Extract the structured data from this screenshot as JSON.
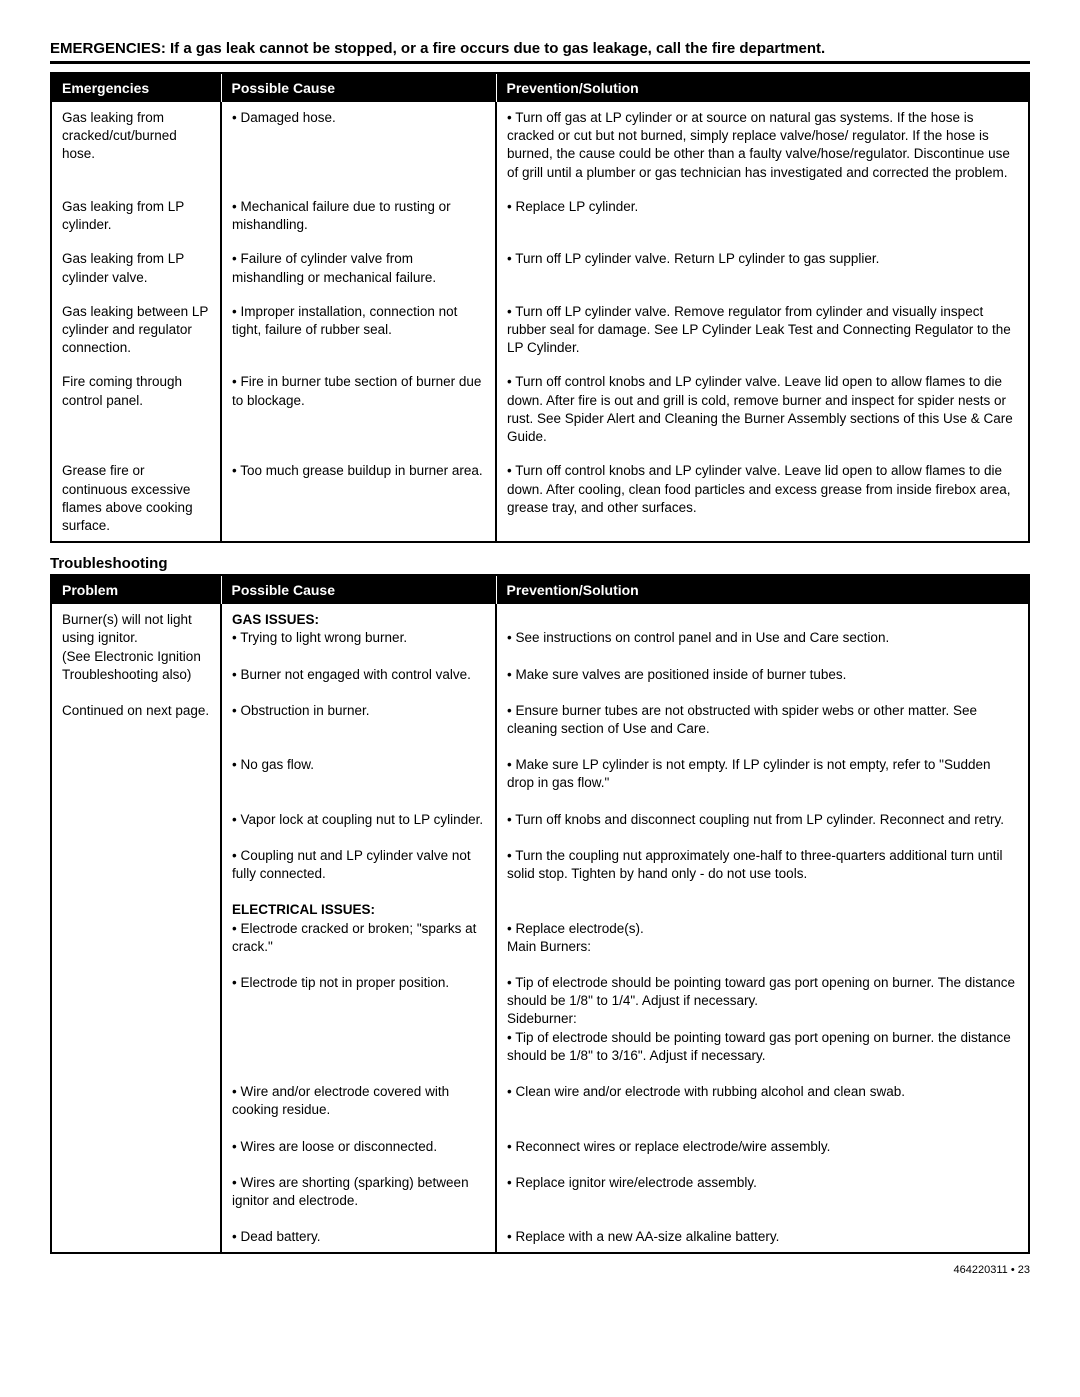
{
  "warning": "EMERGENCIES: If a gas leak cannot be stopped, or a fire occurs due to gas leakage, call the fire department.",
  "emergencies": {
    "headers": [
      "Emergencies",
      "Possible Cause",
      "Prevention/Solution"
    ],
    "rows": [
      {
        "problem": "Gas leaking from cracked/cut/burned hose.",
        "cause": "• Damaged hose.",
        "solution": "• Turn off gas at LP cylinder or at source on natural gas systems. If the hose is cracked or cut but not burned, simply replace valve/hose/ regulator. If the hose is burned, the cause could be other than a faulty valve/hose/regulator. Discontinue use of grill until a plumber or gas technician has investigated and corrected the problem."
      },
      {
        "problem": "Gas leaking from LP cylinder.",
        "cause": "• Mechanical failure due to rusting or mishandling.",
        "solution": "• Replace LP cylinder."
      },
      {
        "problem": "Gas leaking from LP cylinder valve.",
        "cause": "• Failure of cylinder valve from mishandling or mechanical failure.",
        "solution": "• Turn off LP cylinder valve. Return LP cylinder to gas supplier."
      },
      {
        "problem": "Gas leaking between LP cylinder and regulator connection.",
        "cause": "• Improper installation, connection not tight, failure of rubber seal.",
        "solution": "• Turn off LP cylinder valve. Remove regulator from cylinder and visually inspect rubber seal for damage. See LP Cylinder Leak Test and Connecting Regulator to the LP Cylinder."
      },
      {
        "problem": "Fire coming through control panel.",
        "cause": "• Fire in burner tube section of burner due to blockage.",
        "solution": "• Turn off control knobs and LP cylinder valve. Leave lid open to allow flames to die down. After fire is out and grill is cold, remove burner and inspect for spider nests or rust. See Spider Alert and Cleaning the Burner Assembly sections of this Use & Care Guide."
      },
      {
        "problem": "Grease fire or continuous excessive flames above cooking surface.",
        "cause": "• Too much grease buildup in burner area.",
        "solution": "• Turn off control knobs and LP cylinder valve. Leave lid open to allow flames to die down. After cooling, clean food particles and excess grease from inside firebox area, grease tray, and other surfaces."
      }
    ]
  },
  "troubleshooting": {
    "title": "Troubleshooting",
    "headers": [
      "Problem",
      "Possible Cause",
      "Prevention/Solution"
    ],
    "problem_text": "Burner(s) will not  light using ignitor.\n(See Electronic Ignition Troubleshooting also)\n\nContinued on next page.",
    "gas_heading": "GAS ISSUES:",
    "gas_rows": [
      {
        "cause": "• Trying to light wrong burner.",
        "solution": "• See instructions on control panel and in Use and Care section."
      },
      {
        "cause": "• Burner not engaged with control valve.",
        "solution": "• Make sure valves are positioned inside of burner tubes."
      },
      {
        "cause": "• Obstruction in burner.",
        "solution": "• Ensure burner tubes are not obstructed with spider webs or other matter. See cleaning section of Use and Care."
      },
      {
        "cause": "• No gas flow.",
        "solution": "• Make sure LP cylinder is not empty. If LP cylinder is not empty, refer to \"Sudden drop in gas flow.\""
      },
      {
        "cause": "• Vapor lock at coupling nut to LP cylinder.",
        "solution": "• Turn off knobs and disconnect coupling nut from LP cylinder. Reconnect and retry."
      },
      {
        "cause": "• Coupling nut and LP cylinder valve not fully connected.",
        "solution": "• Turn the coupling nut approximately one-half to three-quarters additional turn until solid stop. Tighten by hand only - do not use tools."
      }
    ],
    "elec_heading": "ELECTRICAL ISSUES:",
    "elec_rows": [
      {
        "cause": "• Electrode cracked or broken; \"sparks at crack.\"",
        "solution": "• Replace electrode(s).\nMain Burners:"
      },
      {
        "cause": "• Electrode tip not in proper position.",
        "solution": "• Tip of electrode should be pointing toward gas port opening on burner. The distance should be 1/8\" to 1/4\". Adjust if necessary.\nSideburner:\n• Tip of electrode should be pointing toward gas port opening on burner. the distance should be 1/8\" to 3/16\". Adjust if necessary."
      },
      {
        "cause": "• Wire and/or electrode covered with cooking residue.",
        "solution": "• Clean wire and/or electrode with rubbing alcohol and clean swab."
      },
      {
        "cause": "• Wires are loose or disconnected.",
        "solution": "• Reconnect wires or replace electrode/wire assembly."
      },
      {
        "cause": "• Wires are shorting (sparking) between ignitor and electrode.",
        "solution": "• Replace ignitor wire/electrode assembly."
      },
      {
        "cause": "• Dead battery.",
        "solution": "• Replace with a new AA-size alkaline battery."
      }
    ]
  },
  "footer": "464220311 • 23"
}
